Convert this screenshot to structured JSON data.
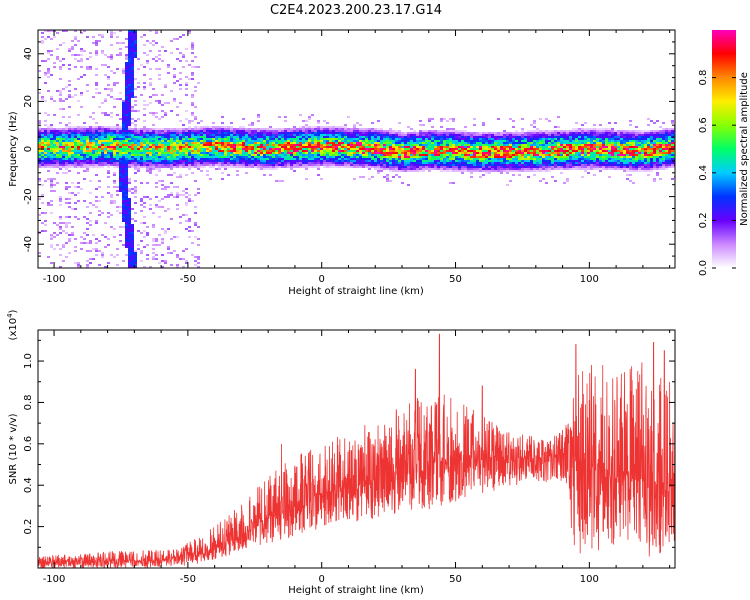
{
  "title": "C2E4.2023.200.23.17.G14",
  "chart_data": [
    {
      "type": "heatmap",
      "xlabel": "Height of straight line (km)",
      "ylabel": "Frequency (Hz)",
      "xlim": [
        -106,
        132
      ],
      "ylim": [
        -50,
        50
      ],
      "xticks": [
        -100,
        -50,
        0,
        50,
        100
      ],
      "yticks": [
        -40,
        -20,
        0,
        20,
        40
      ],
      "ridge_frequency": [
        {
          "x": -100,
          "y": 1.0
        },
        {
          "x": -80,
          "y": 1.5
        },
        {
          "x": -60,
          "y": 0.5
        },
        {
          "x": -40,
          "y": 1.5
        },
        {
          "x": -20,
          "y": 0.5
        },
        {
          "x": 0,
          "y": 1.5
        },
        {
          "x": 20,
          "y": 0.5
        },
        {
          "x": 30,
          "y": -1.0
        },
        {
          "x": 40,
          "y": 0.0
        },
        {
          "x": 60,
          "y": -1.0
        },
        {
          "x": 80,
          "y": -0.5
        },
        {
          "x": 100,
          "y": 0.5
        },
        {
          "x": 120,
          "y": -0.5
        },
        {
          "x": 132,
          "y": 1.0
        }
      ],
      "streak": [
        {
          "x": -71,
          "y": 50
        },
        {
          "x": -73,
          "y": 20
        },
        {
          "x": -75,
          "y": 0
        },
        {
          "x": -74,
          "y": -20
        },
        {
          "x": -72,
          "y": -40
        },
        {
          "x": -71,
          "y": -50
        }
      ],
      "colorbar": {
        "label": "Normalized spectral amplitude",
        "range": [
          0,
          1
        ],
        "ticks": [
          0.0,
          0.2,
          0.4,
          0.6,
          0.8
        ],
        "tick_labels": [
          "0.0",
          "0.2",
          "0.4",
          "0.6",
          "0.8"
        ],
        "colors": [
          "#ffffff",
          "#cc88ff",
          "#6600ff",
          "#0033ff",
          "#00ccff",
          "#00ff66",
          "#88ff00",
          "#ffee00",
          "#ff8800",
          "#ff0000",
          "#ff00bb"
        ]
      }
    },
    {
      "type": "line",
      "xlabel": "Height of straight line (km)",
      "ylabel": "SNR (10 * v/v)",
      "y_multiplier": "(x10",
      "y_multiplier_exp": "4",
      "y_multiplier_close": ")",
      "xlim": [
        -106,
        132
      ],
      "ylim": [
        0,
        1.15
      ],
      "xticks": [
        -100,
        -50,
        0,
        50,
        100
      ],
      "yticks": [
        0.2,
        0.4,
        0.6,
        0.8,
        1.0
      ],
      "ytick_labels": [
        "0.2",
        "0.4",
        "0.6",
        "0.8",
        "1.0"
      ],
      "color": "#ee3333",
      "series": [
        {
          "lower": [
            {
              "x": -106,
              "y": 0.0
            },
            {
              "x": -60,
              "y": 0.0
            },
            {
              "x": -45,
              "y": 0.02
            },
            {
              "x": -30,
              "y": 0.08
            },
            {
              "x": -20,
              "y": 0.12
            },
            {
              "x": -10,
              "y": 0.15
            },
            {
              "x": 0,
              "y": 0.18
            },
            {
              "x": 20,
              "y": 0.24
            },
            {
              "x": 40,
              "y": 0.28
            },
            {
              "x": 60,
              "y": 0.36
            },
            {
              "x": 80,
              "y": 0.42
            },
            {
              "x": 92,
              "y": 0.4
            },
            {
              "x": 94,
              "y": 0.06
            },
            {
              "x": 110,
              "y": 0.1
            },
            {
              "x": 120,
              "y": 0.05
            },
            {
              "x": 132,
              "y": 0.08
            }
          ],
          "upper": [
            {
              "x": -106,
              "y": 0.06
            },
            {
              "x": -80,
              "y": 0.08
            },
            {
              "x": -55,
              "y": 0.09
            },
            {
              "x": -45,
              "y": 0.16
            },
            {
              "x": -35,
              "y": 0.25
            },
            {
              "x": -20,
              "y": 0.45
            },
            {
              "x": -10,
              "y": 0.55
            },
            {
              "x": 0,
              "y": 0.6
            },
            {
              "x": 20,
              "y": 0.72
            },
            {
              "x": 35,
              "y": 0.82
            },
            {
              "x": 45,
              "y": 0.85
            },
            {
              "x": 55,
              "y": 0.78
            },
            {
              "x": 70,
              "y": 0.66
            },
            {
              "x": 85,
              "y": 0.62
            },
            {
              "x": 92,
              "y": 0.7
            },
            {
              "x": 96,
              "y": 1.0
            },
            {
              "x": 110,
              "y": 0.95
            },
            {
              "x": 125,
              "y": 1.02
            },
            {
              "x": 132,
              "y": 0.9
            }
          ],
          "center": [
            {
              "x": -106,
              "y": 0.03
            },
            {
              "x": -60,
              "y": 0.04
            },
            {
              "x": -45,
              "y": 0.07
            },
            {
              "x": -30,
              "y": 0.16
            },
            {
              "x": -20,
              "y": 0.25
            },
            {
              "x": 0,
              "y": 0.36
            },
            {
              "x": 20,
              "y": 0.44
            },
            {
              "x": 40,
              "y": 0.52
            },
            {
              "x": 60,
              "y": 0.54
            },
            {
              "x": 80,
              "y": 0.53
            },
            {
              "x": 92,
              "y": 0.55
            },
            {
              "x": 100,
              "y": 0.5
            },
            {
              "x": 115,
              "y": 0.45
            },
            {
              "x": 132,
              "y": 0.4
            }
          ],
          "spikes": [
            {
              "x": 44,
              "y": 1.13
            },
            {
              "x": 35,
              "y": 0.96
            },
            {
              "x": 95,
              "y": 1.08
            },
            {
              "x": 124,
              "y": 1.09
            },
            {
              "x": 128,
              "y": 1.05
            },
            {
              "x": -15,
              "y": 0.6
            },
            {
              "x": 60,
              "y": 0.88
            },
            {
              "x": 105,
              "y": 0.98
            }
          ]
        }
      ]
    }
  ]
}
